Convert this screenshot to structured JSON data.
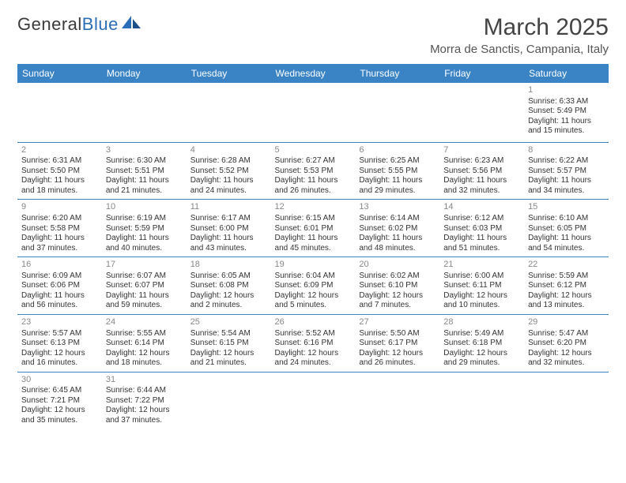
{
  "logo": {
    "text1": "General",
    "text2": "Blue"
  },
  "title": "March 2025",
  "location": "Morra de Sanctis, Campania, Italy",
  "headers": [
    "Sunday",
    "Monday",
    "Tuesday",
    "Wednesday",
    "Thursday",
    "Friday",
    "Saturday"
  ],
  "colors": {
    "header_bg": "#3a83c5",
    "header_fg": "#ffffff",
    "border": "#3a83c5",
    "daynum": "#888888",
    "text": "#333333",
    "logo_blue": "#2a6db8"
  },
  "fonts": {
    "month_size": 30,
    "location_size": 15,
    "header_size": 12,
    "cell_size": 10,
    "daynum_size": 11
  },
  "weeks": [
    [
      null,
      null,
      null,
      null,
      null,
      null,
      {
        "n": "1",
        "sunrise": "6:33 AM",
        "sunset": "5:49 PM",
        "dayh": "11",
        "daym": "15"
      }
    ],
    [
      {
        "n": "2",
        "sunrise": "6:31 AM",
        "sunset": "5:50 PM",
        "dayh": "11",
        "daym": "18"
      },
      {
        "n": "3",
        "sunrise": "6:30 AM",
        "sunset": "5:51 PM",
        "dayh": "11",
        "daym": "21"
      },
      {
        "n": "4",
        "sunrise": "6:28 AM",
        "sunset": "5:52 PM",
        "dayh": "11",
        "daym": "24"
      },
      {
        "n": "5",
        "sunrise": "6:27 AM",
        "sunset": "5:53 PM",
        "dayh": "11",
        "daym": "26"
      },
      {
        "n": "6",
        "sunrise": "6:25 AM",
        "sunset": "5:55 PM",
        "dayh": "11",
        "daym": "29"
      },
      {
        "n": "7",
        "sunrise": "6:23 AM",
        "sunset": "5:56 PM",
        "dayh": "11",
        "daym": "32"
      },
      {
        "n": "8",
        "sunrise": "6:22 AM",
        "sunset": "5:57 PM",
        "dayh": "11",
        "daym": "34"
      }
    ],
    [
      {
        "n": "9",
        "sunrise": "6:20 AM",
        "sunset": "5:58 PM",
        "dayh": "11",
        "daym": "37"
      },
      {
        "n": "10",
        "sunrise": "6:19 AM",
        "sunset": "5:59 PM",
        "dayh": "11",
        "daym": "40"
      },
      {
        "n": "11",
        "sunrise": "6:17 AM",
        "sunset": "6:00 PM",
        "dayh": "11",
        "daym": "43"
      },
      {
        "n": "12",
        "sunrise": "6:15 AM",
        "sunset": "6:01 PM",
        "dayh": "11",
        "daym": "45"
      },
      {
        "n": "13",
        "sunrise": "6:14 AM",
        "sunset": "6:02 PM",
        "dayh": "11",
        "daym": "48"
      },
      {
        "n": "14",
        "sunrise": "6:12 AM",
        "sunset": "6:03 PM",
        "dayh": "11",
        "daym": "51"
      },
      {
        "n": "15",
        "sunrise": "6:10 AM",
        "sunset": "6:05 PM",
        "dayh": "11",
        "daym": "54"
      }
    ],
    [
      {
        "n": "16",
        "sunrise": "6:09 AM",
        "sunset": "6:06 PM",
        "dayh": "11",
        "daym": "56"
      },
      {
        "n": "17",
        "sunrise": "6:07 AM",
        "sunset": "6:07 PM",
        "dayh": "11",
        "daym": "59"
      },
      {
        "n": "18",
        "sunrise": "6:05 AM",
        "sunset": "6:08 PM",
        "dayh": "12",
        "daym": "2"
      },
      {
        "n": "19",
        "sunrise": "6:04 AM",
        "sunset": "6:09 PM",
        "dayh": "12",
        "daym": "5"
      },
      {
        "n": "20",
        "sunrise": "6:02 AM",
        "sunset": "6:10 PM",
        "dayh": "12",
        "daym": "7"
      },
      {
        "n": "21",
        "sunrise": "6:00 AM",
        "sunset": "6:11 PM",
        "dayh": "12",
        "daym": "10"
      },
      {
        "n": "22",
        "sunrise": "5:59 AM",
        "sunset": "6:12 PM",
        "dayh": "12",
        "daym": "13"
      }
    ],
    [
      {
        "n": "23",
        "sunrise": "5:57 AM",
        "sunset": "6:13 PM",
        "dayh": "12",
        "daym": "16"
      },
      {
        "n": "24",
        "sunrise": "5:55 AM",
        "sunset": "6:14 PM",
        "dayh": "12",
        "daym": "18"
      },
      {
        "n": "25",
        "sunrise": "5:54 AM",
        "sunset": "6:15 PM",
        "dayh": "12",
        "daym": "21"
      },
      {
        "n": "26",
        "sunrise": "5:52 AM",
        "sunset": "6:16 PM",
        "dayh": "12",
        "daym": "24"
      },
      {
        "n": "27",
        "sunrise": "5:50 AM",
        "sunset": "6:17 PM",
        "dayh": "12",
        "daym": "26"
      },
      {
        "n": "28",
        "sunrise": "5:49 AM",
        "sunset": "6:18 PM",
        "dayh": "12",
        "daym": "29"
      },
      {
        "n": "29",
        "sunrise": "5:47 AM",
        "sunset": "6:20 PM",
        "dayh": "12",
        "daym": "32"
      }
    ],
    [
      {
        "n": "30",
        "sunrise": "6:45 AM",
        "sunset": "7:21 PM",
        "dayh": "12",
        "daym": "35"
      },
      {
        "n": "31",
        "sunrise": "6:44 AM",
        "sunset": "7:22 PM",
        "dayh": "12",
        "daym": "37"
      },
      null,
      null,
      null,
      null,
      null
    ]
  ]
}
